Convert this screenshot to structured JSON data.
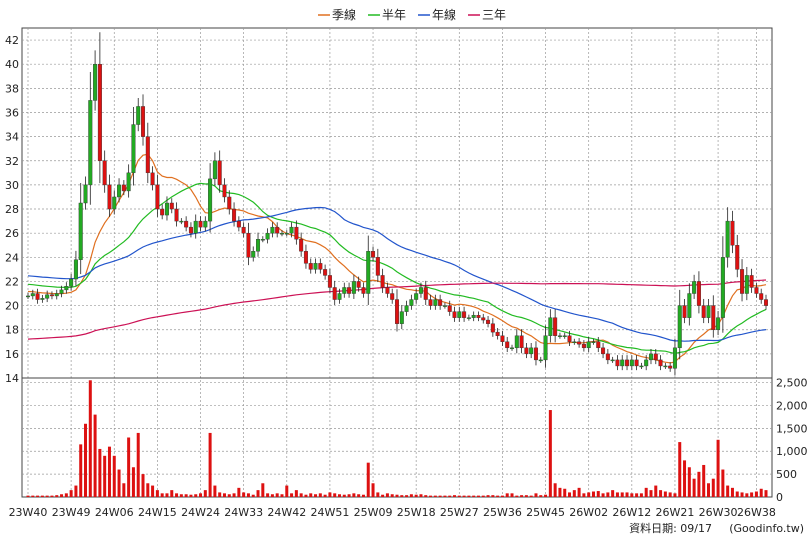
{
  "legend": [
    {
      "label": "季線",
      "color": "#e07020"
    },
    {
      "label": "半年",
      "color": "#22bb22"
    },
    {
      "label": "年線",
      "color": "#2255cc"
    },
    {
      "label": "三年",
      "color": "#cc1155"
    }
  ],
  "footer": {
    "date_label": "資料日期: 09/17",
    "source": "(Goodinfo.tw)"
  },
  "colors": {
    "up": "#22aa22",
    "down": "#dd1111",
    "volume": "#dd1111",
    "grid": "#999999"
  },
  "chart_data": {
    "type": "candlestick",
    "price_axis": {
      "ylim": [
        14,
        43
      ],
      "ticks": [
        "14",
        "16",
        "18",
        "20",
        "22",
        "24",
        "26",
        "28",
        "30",
        "32",
        "34",
        "36",
        "38",
        "40",
        "42"
      ]
    },
    "volume_axis": {
      "ylim": [
        0,
        2600
      ],
      "ticks": [
        "0",
        "500",
        "1,000",
        "1,500",
        "2,000",
        "2,500"
      ]
    },
    "x_ticks": [
      "23W40",
      "23W49",
      "24W06",
      "24W15",
      "24W24",
      "24W33",
      "24W42",
      "24W51",
      "25W09",
      "25W18",
      "25W27",
      "25W36",
      "25W45",
      "26W02",
      "26W12",
      "26W21",
      "26W30",
      "26W38"
    ],
    "x_tick_index": [
      0,
      9,
      18,
      27,
      36,
      45,
      54,
      63,
      72,
      81,
      90,
      99,
      108,
      117,
      126,
      135,
      144,
      152
    ],
    "grid": true,
    "legend_position": "top-center",
    "close_approx": [
      20.8,
      21.0,
      20.5,
      20.6,
      20.9,
      20.8,
      21.0,
      21.3,
      21.6,
      22.2,
      23.8,
      28.5,
      30.0,
      37.0,
      40.0,
      32.0,
      30.0,
      28.0,
      29.0,
      30.0,
      29.5,
      31.0,
      35.0,
      36.5,
      34.0,
      31.0,
      30.0,
      28.0,
      27.5,
      28.5,
      28.0,
      27.0,
      27.0,
      26.5,
      26.0,
      27.0,
      26.5,
      27.0,
      30.5,
      32.0,
      30.0,
      29.0,
      28.0,
      27.0,
      26.5,
      26.0,
      24.0,
      24.5,
      25.5,
      25.5,
      26.0,
      26.5,
      26.0,
      26.0,
      26.0,
      26.5,
      25.5,
      24.5,
      23.5,
      23.0,
      23.5,
      23.0,
      22.5,
      21.5,
      20.5,
      21.0,
      21.5,
      21.0,
      22.0,
      21.5,
      21.0,
      24.5,
      24.0,
      22.5,
      21.5,
      21.0,
      20.5,
      18.5,
      19.5,
      20.0,
      20.5,
      21.0,
      21.5,
      20.5,
      20.0,
      20.5,
      20.0,
      20.0,
      19.5,
      19.0,
      19.5,
      19.0,
      19.0,
      19.2,
      19.0,
      18.8,
      18.5,
      17.8,
      17.5,
      17.0,
      16.5,
      16.5,
      17.5,
      16.5,
      16.0,
      16.5,
      15.5,
      15.5,
      17.5,
      19.0,
      17.5,
      17.5,
      17.5,
      17.0,
      17.0,
      16.8,
      16.5,
      17.0,
      17.0,
      16.5,
      16.0,
      15.5,
      15.5,
      15.0,
      15.5,
      15.0,
      15.5,
      15.0,
      15.0,
      15.5,
      16.0,
      15.5,
      15.0,
      15.0,
      14.8,
      16.5,
      20.0,
      19.0,
      21.0,
      22.0,
      20.0,
      19.0,
      20.0,
      18.0,
      19.0,
      24.0,
      27.0,
      25.0,
      23.0,
      21.0,
      22.5,
      21.5,
      21.0,
      20.5,
      20.0
    ],
    "volume_approx": [
      30,
      30,
      30,
      30,
      30,
      30,
      40,
      60,
      80,
      150,
      250,
      1150,
      1600,
      2550,
      1800,
      1050,
      900,
      1100,
      900,
      600,
      300,
      1300,
      650,
      1400,
      500,
      300,
      250,
      150,
      80,
      80,
      150,
      80,
      60,
      60,
      50,
      60,
      80,
      150,
      1400,
      250,
      100,
      80,
      60,
      80,
      200,
      100,
      80,
      50,
      150,
      300,
      80,
      60,
      80,
      60,
      250,
      80,
      150,
      80,
      50,
      80,
      60,
      80,
      50,
      100,
      80,
      60,
      50,
      60,
      80,
      60,
      50,
      750,
      300,
      100,
      50,
      80,
      60,
      50,
      40,
      40,
      60,
      50,
      60,
      40,
      30,
      30,
      30,
      30,
      30,
      40,
      30,
      30,
      30,
      30,
      30,
      30,
      40,
      40,
      30,
      30,
      80,
      80,
      30,
      40,
      40,
      30,
      80,
      40,
      50,
      1900,
      300,
      200,
      180,
      100,
      150,
      200,
      80,
      100,
      120,
      130,
      80,
      100,
      150,
      100,
      100,
      100,
      80,
      80,
      80,
      200,
      150,
      250,
      150,
      120,
      100,
      80,
      1200,
      800,
      650,
      400,
      550,
      700,
      300,
      400,
      1250,
      600,
      250,
      200,
      120,
      100,
      80,
      100,
      120,
      180,
      150
    ]
  }
}
